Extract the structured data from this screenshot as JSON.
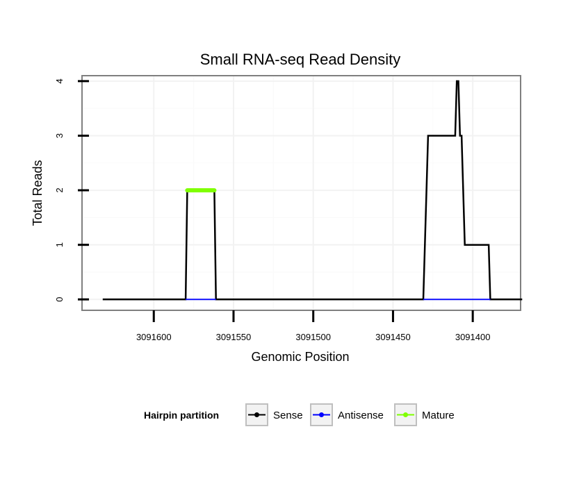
{
  "chart_data": {
    "type": "line",
    "title": "Small RNA-seq Read Density",
    "xlabel": "Genomic Position",
    "ylabel": "Total Reads",
    "x_reversed": true,
    "xlim": [
      3091645,
      3091370
    ],
    "ylim": [
      -0.2,
      4.1
    ],
    "x_ticks": [
      3091600,
      3091550,
      3091500,
      3091450,
      3091400
    ],
    "x_tick_labels": [
      "3091600",
      "3091550",
      "3091500",
      "3091450",
      "3091400"
    ],
    "y_ticks": [
      0,
      1,
      2,
      3,
      4
    ],
    "y_tick_labels": [
      "0",
      "1",
      "2",
      "3",
      "4"
    ],
    "grid": true,
    "legend": {
      "title": "Hairpin partition",
      "position": "bottom",
      "entries": [
        {
          "label": "Sense",
          "color": "#000000"
        },
        {
          "label": "Antisense",
          "color": "#0000ff"
        },
        {
          "label": "Mature",
          "color": "#7fff00"
        }
      ]
    },
    "series": [
      {
        "name": "Sense",
        "color": "#000000",
        "x": [
          3091632,
          3091580,
          3091579,
          3091562,
          3091561,
          3091431,
          3091428,
          3091411,
          3091410,
          3091409,
          3091408,
          3091407,
          3091405,
          3091404,
          3091390,
          3091389,
          3091369
        ],
        "y": [
          0,
          0,
          2,
          2,
          0,
          0,
          3,
          3,
          4,
          4,
          3,
          3,
          1,
          1,
          1,
          0,
          0
        ]
      },
      {
        "name": "Antisense",
        "color": "#0000ff",
        "segments": [
          {
            "x": [
              3091580,
              3091561
            ],
            "y": [
              0,
              0
            ]
          },
          {
            "x": [
              3091431,
              3091389
            ],
            "y": [
              0,
              0
            ]
          }
        ]
      },
      {
        "name": "Mature",
        "color": "#7fff00",
        "x": [
          3091579,
          3091562
        ],
        "y": [
          2,
          2
        ]
      }
    ]
  }
}
